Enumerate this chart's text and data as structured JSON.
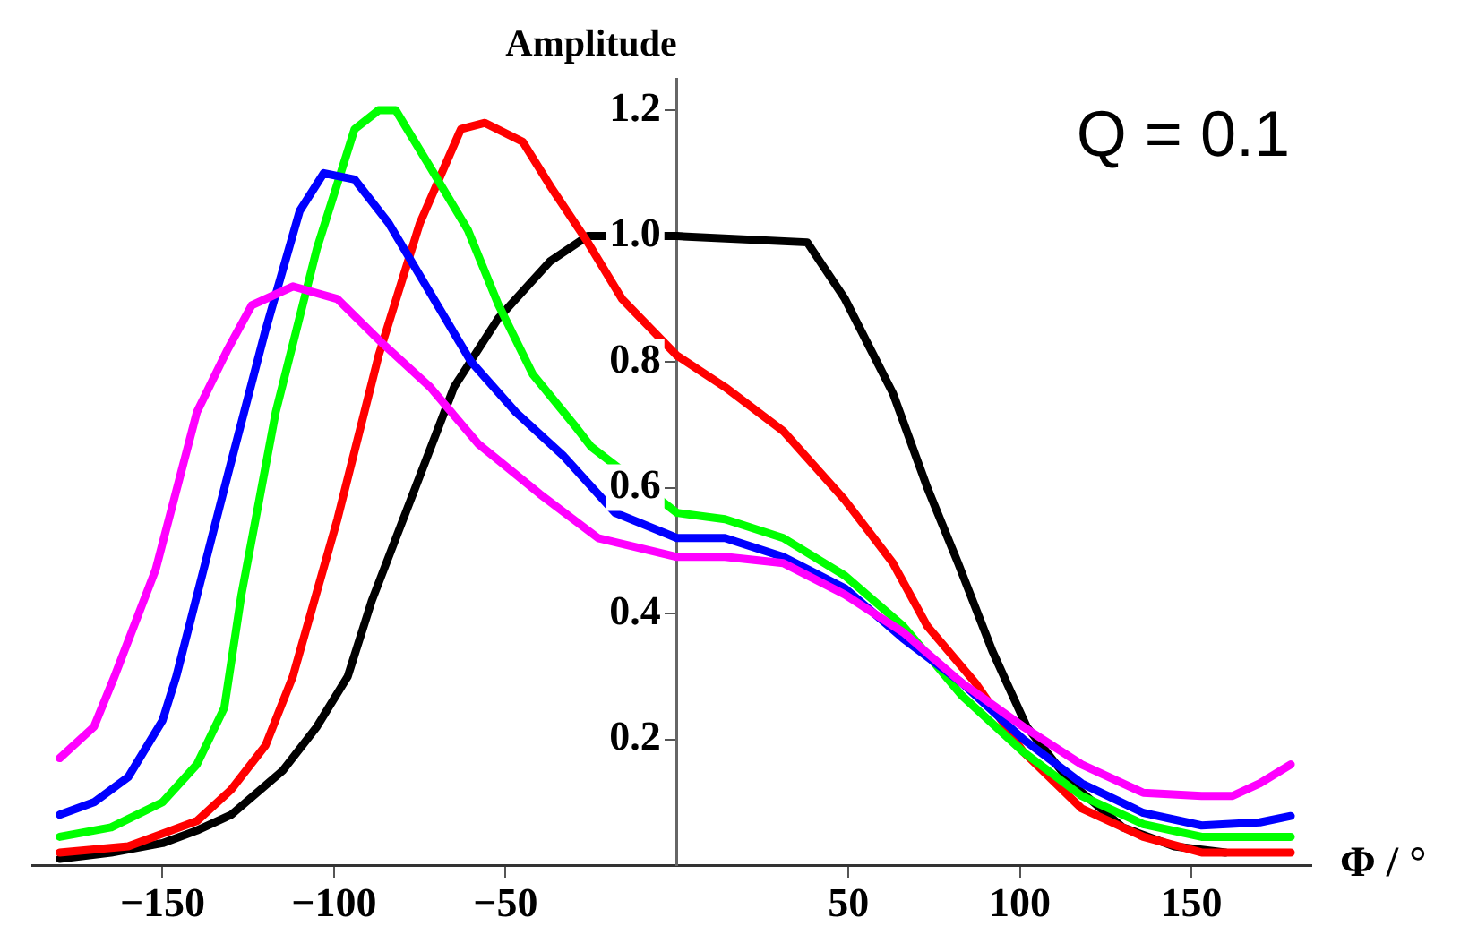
{
  "chart_data": {
    "type": "line",
    "xlabel": "Φ / °",
    "ylabel": "Amplitude",
    "annotations": [
      "Q = 0.1"
    ],
    "xlim": [
      -188,
      185
    ],
    "ylim": [
      0,
      1.25
    ],
    "xticks": [
      -150,
      -100,
      -50,
      50,
      100,
      150
    ],
    "yticks": [
      0.2,
      0.4,
      0.6,
      0.8,
      {
        "value": 1,
        "label": "1.0"
      },
      1.2
    ],
    "grid": false,
    "legend": false,
    "marker": "none",
    "line_style": "solid",
    "series": [
      {
        "color": "#ff00ff",
        "x": [
          -180,
          -170,
          -164,
          -152,
          -140,
          -131,
          -124,
          -112,
          -99,
          -86,
          -72,
          -58,
          -40,
          -23,
          0,
          14,
          31,
          49,
          66,
          83,
          101,
          118,
          136,
          153,
          162,
          170,
          179
        ],
        "values": [
          0.17,
          0.22,
          0.3,
          0.47,
          0.72,
          0.82,
          0.89,
          0.92,
          0.9,
          0.83,
          0.76,
          0.67,
          0.59,
          0.52,
          0.49,
          0.49,
          0.48,
          0.43,
          0.37,
          0.29,
          0.22,
          0.16,
          0.115,
          0.11,
          0.11,
          0.13,
          0.16
        ]
      },
      {
        "color": "#0000ff",
        "x": [
          -180,
          -170,
          -160,
          -150,
          -146,
          -131,
          -120,
          -110,
          -103,
          -94,
          -84,
          -72,
          -60,
          -47,
          -33,
          -18,
          0,
          14,
          31,
          49,
          66,
          83,
          101,
          118,
          136,
          153,
          170,
          179
        ],
        "values": [
          0.08,
          0.1,
          0.14,
          0.23,
          0.3,
          0.62,
          0.85,
          1.04,
          1.1,
          1.09,
          1.02,
          0.91,
          0.8,
          0.72,
          0.65,
          0.56,
          0.52,
          0.52,
          0.49,
          0.44,
          0.36,
          0.29,
          0.2,
          0.13,
          0.083,
          0.063,
          0.068,
          0.078
        ]
      },
      {
        "color": "#00ff00",
        "x": [
          -180,
          -165,
          -150,
          -140,
          -132,
          -127,
          -117,
          -105,
          -94,
          -87,
          -82,
          -72,
          -61,
          -52,
          -42,
          -30,
          -25,
          0,
          14,
          31,
          49,
          66,
          83,
          101,
          118,
          136,
          153,
          179
        ],
        "values": [
          0.045,
          0.06,
          0.1,
          0.16,
          0.25,
          0.43,
          0.72,
          0.98,
          1.17,
          1.2,
          1.2,
          1.11,
          1.01,
          0.89,
          0.78,
          0.7,
          0.665,
          0.56,
          0.55,
          0.52,
          0.46,
          0.38,
          0.27,
          0.18,
          0.11,
          0.065,
          0.045,
          0.045
        ]
      },
      {
        "color": "#ff0000",
        "x": [
          -180,
          -160,
          -150,
          -140,
          -130,
          -120,
          -112,
          -99,
          -87,
          -75,
          -63,
          -56,
          -45,
          -37,
          -26,
          -16,
          0,
          14,
          31,
          49,
          63,
          73,
          87,
          101,
          118,
          136,
          153,
          179
        ],
        "values": [
          0.02,
          0.03,
          0.05,
          0.07,
          0.12,
          0.19,
          0.3,
          0.55,
          0.81,
          1.02,
          1.17,
          1.18,
          1.15,
          1.08,
          0.99,
          0.9,
          0.81,
          0.76,
          0.69,
          0.58,
          0.48,
          0.38,
          0.29,
          0.18,
          0.09,
          0.045,
          0.02,
          0.02
        ]
      },
      {
        "color": "#000000",
        "x": [
          -180,
          -165,
          -150,
          -140,
          -130,
          -115,
          -105,
          -96,
          -89,
          -77,
          -65,
          -52,
          -37,
          -26,
          0,
          38,
          49,
          63,
          73,
          82,
          92,
          102,
          115,
          130,
          145,
          160
        ],
        "values": [
          0.01,
          0.02,
          0.035,
          0.055,
          0.08,
          0.15,
          0.22,
          0.3,
          0.42,
          0.59,
          0.76,
          0.87,
          0.96,
          1.0,
          1.0,
          0.99,
          0.9,
          0.75,
          0.6,
          0.48,
          0.34,
          0.22,
          0.13,
          0.06,
          0.03,
          0.02
        ]
      }
    ]
  }
}
